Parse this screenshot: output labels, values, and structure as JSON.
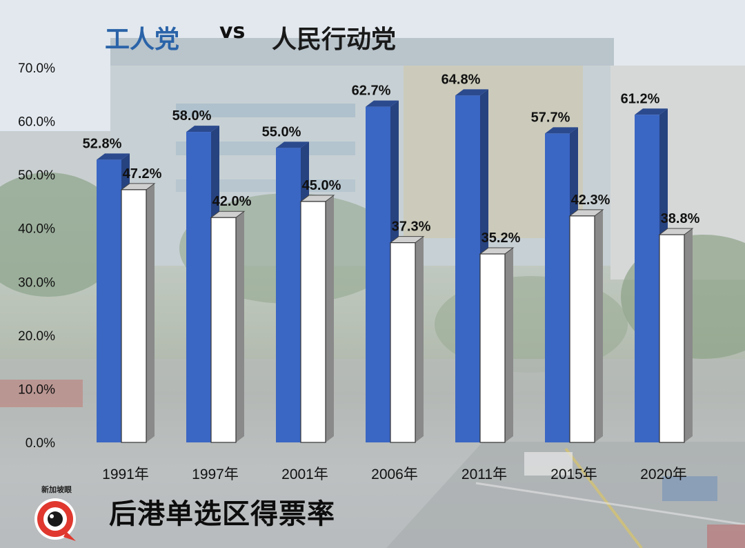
{
  "title": {
    "party_a": "工人党",
    "vs": "vs",
    "party_b": "人民行动党"
  },
  "subtitle": "后港单选区得票率",
  "logo_text": "新加坡眼",
  "chart_data": {
    "type": "bar",
    "categories": [
      "1991年",
      "1997年",
      "2001年",
      "2006年",
      "2011年",
      "2015年",
      "2020年"
    ],
    "series": [
      {
        "name": "工人党",
        "values": [
          52.8,
          58.0,
          55.0,
          62.7,
          64.8,
          57.7,
          61.2
        ],
        "color": "#3a66c4"
      },
      {
        "name": "人民行动党",
        "values": [
          47.2,
          42.0,
          45.0,
          37.3,
          35.2,
          42.3,
          38.8
        ],
        "color": "#ffffff"
      }
    ],
    "value_labels": [
      [
        "52.8%",
        "58.0%",
        "55.0%",
        "62.7%",
        "64.8%",
        "57.7%",
        "61.2%"
      ],
      [
        "47.2%",
        "42.0%",
        "45.0%",
        "37.3%",
        "35.2%",
        "42.3%",
        "38.8%"
      ]
    ],
    "yticks": [
      "0.0%",
      "10.0%",
      "20.0%",
      "30.0%",
      "40.0%",
      "50.0%",
      "60.0%",
      "70.0%"
    ],
    "ylim": [
      0,
      70
    ],
    "grid": false,
    "legend": "none"
  }
}
